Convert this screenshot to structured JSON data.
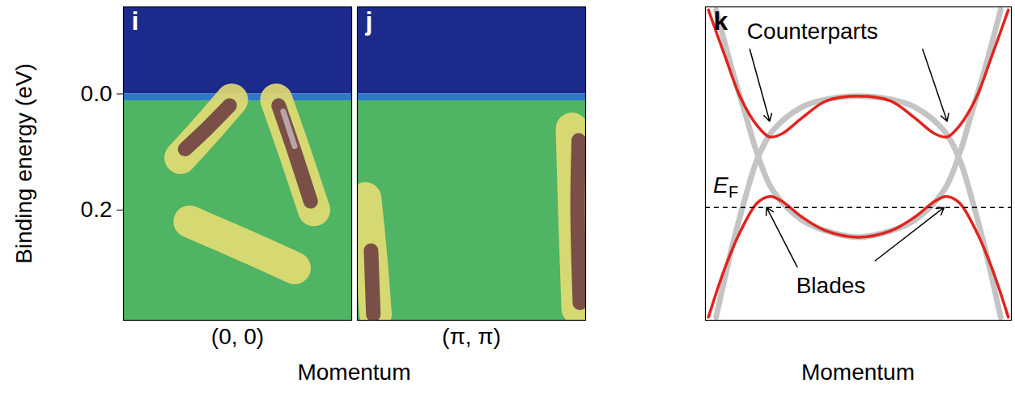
{
  "chart_data": [
    {
      "type": "intensity_map",
      "panel_label": "i",
      "ylabel": "Binding energy (eV)",
      "xlabel": "Momentum",
      "xlim": [
        -1,
        1
      ],
      "xticks": [
        {
          "value": 0,
          "label": "(0, 0)"
        }
      ],
      "ylim": [
        -0.15,
        0.39
      ],
      "yticks": [
        {
          "value": 0,
          "label": "0.0"
        },
        {
          "value": 0.2,
          "label": "0.2"
        }
      ],
      "regions": [
        {
          "color": "#1c2a8c",
          "range": [
            -0.15,
            0.0
          ]
        },
        {
          "color": "#2e78c8",
          "range": [
            0.0,
            0.012
          ]
        },
        {
          "color": "#4fb463",
          "range": [
            0.012,
            0.39
          ]
        }
      ],
      "series": [
        {
          "type": "halo",
          "color": "#e4dc72",
          "x": [
            -0.42,
            0.05,
            0.5
          ],
          "values": [
            0.22,
            0.26,
            0.3
          ]
        },
        {
          "type": "halo",
          "color": "#e4dc72",
          "x": [
            -0.05,
            -0.27,
            -0.5
          ],
          "values": [
            0.01,
            0.06,
            0.11
          ]
        },
        {
          "type": "halo",
          "color": "#e4dc72",
          "x": [
            0.34,
            0.5,
            0.67
          ],
          "values": [
            0.01,
            0.1,
            0.2
          ]
        },
        {
          "type": "band",
          "color": "#7a4f47",
          "x": [
            -0.07,
            -0.27,
            -0.46
          ],
          "values": [
            0.02,
            0.06,
            0.095
          ]
        },
        {
          "type": "band",
          "color": "#7a4f47",
          "x": [
            0.36,
            0.5,
            0.64
          ],
          "values": [
            0.02,
            0.1,
            0.185
          ]
        },
        {
          "type": "core",
          "color": "#b9a4aa",
          "x": [
            0.4,
            0.5
          ],
          "values": [
            0.03,
            0.09
          ]
        }
      ]
    },
    {
      "type": "intensity_map",
      "panel_label": "j",
      "tick_labels": "x",
      "xlim": [
        -1,
        1
      ],
      "xticks": [
        {
          "value": 0,
          "label": "(π, π)"
        }
      ],
      "ylim": [
        -0.15,
        0.39
      ],
      "regions": [
        {
          "color": "#1c2a8c",
          "range": [
            -0.15,
            0.0
          ]
        },
        {
          "color": "#2e78c8",
          "range": [
            0.0,
            0.012
          ]
        },
        {
          "color": "#4fb463",
          "range": [
            0.012,
            0.39
          ]
        }
      ],
      "series": [
        {
          "type": "halo",
          "color": "#e4dc72",
          "x": [
            0.88,
            0.9,
            0.93
          ],
          "values": [
            0.06,
            0.2,
            0.37
          ]
        },
        {
          "type": "halo",
          "color": "#e4dc72",
          "x": [
            -0.93,
            -0.88,
            -0.84
          ],
          "values": [
            0.18,
            0.28,
            0.38
          ]
        },
        {
          "type": "band",
          "color": "#7a4f47",
          "x": [
            0.94,
            0.93,
            0.95
          ],
          "values": [
            0.08,
            0.2,
            0.36
          ]
        },
        {
          "type": "band",
          "color": "#7a4f47",
          "x": [
            -0.88,
            -0.86
          ],
          "values": [
            0.27,
            0.38
          ]
        }
      ]
    },
    {
      "type": "line",
      "panel_label": "k",
      "xlabel": "Momentum",
      "tick_labels": false,
      "xlim": [
        -1,
        1
      ],
      "ylim": [
        -1,
        1
      ],
      "series": [
        {
          "color": "#c4c4c4",
          "line_style": "thick",
          "x": [
            -0.93,
            -0.82,
            -0.74,
            -0.66,
            -0.56,
            -0.37,
            -0.21,
            0,
            0.21,
            0.37,
            0.56,
            0.66,
            0.74,
            0.82,
            0.93
          ],
          "values": [
            -0.98,
            -0.51,
            -0.22,
            0.03,
            0.21,
            0.36,
            0.41,
            0.43,
            0.41,
            0.36,
            0.21,
            0.03,
            -0.22,
            -0.51,
            -0.98
          ]
        },
        {
          "color": "#c4c4c4",
          "line_style": "thick",
          "x": [
            -0.93,
            -0.82,
            -0.74,
            -0.66,
            -0.56,
            -0.37,
            -0.21,
            0,
            0.21,
            0.37,
            0.56,
            0.66,
            0.74,
            0.82,
            0.93
          ],
          "values": [
            0.98,
            0.58,
            0.32,
            0.06,
            -0.17,
            -0.36,
            -0.43,
            -0.47,
            -0.43,
            -0.36,
            -0.17,
            0.06,
            0.32,
            0.58,
            0.98
          ]
        },
        {
          "color": "#e0241d",
          "line_style": "solid",
          "x": [
            -0.98,
            -0.87,
            -0.77,
            -0.66,
            -0.58,
            -0.5,
            -0.37,
            -0.21,
            0,
            0.21,
            0.37,
            0.5,
            0.58,
            0.66,
            0.77,
            0.87,
            0.98
          ],
          "values": [
            0.98,
            0.68,
            0.42,
            0.24,
            0.17,
            0.19,
            0.29,
            0.4,
            0.43,
            0.4,
            0.29,
            0.19,
            0.17,
            0.24,
            0.42,
            0.68,
            0.98
          ]
        },
        {
          "color": "#e0241d",
          "line_style": "solid",
          "x": [
            -0.98,
            -0.87,
            -0.77,
            -0.66,
            -0.58,
            -0.5,
            -0.37,
            -0.21,
            0,
            0.21,
            0.37,
            0.5,
            0.58,
            0.66,
            0.77,
            0.87,
            0.98
          ],
          "values": [
            -0.98,
            -0.66,
            -0.43,
            -0.25,
            -0.21,
            -0.24,
            -0.34,
            -0.43,
            -0.47,
            -0.43,
            -0.34,
            -0.24,
            -0.21,
            -0.25,
            -0.43,
            -0.66,
            -0.98
          ]
        }
      ],
      "reference_line": {
        "value": -0.28,
        "line_style": "dashed",
        "label": {
          "text": "E",
          "subscript": "F"
        },
        "label_at": [
          -0.95,
          -0.14
        ]
      },
      "annotations": [
        {
          "text": "Counterparts",
          "at": [
            -0.3,
            0.84
          ],
          "arrows": [
            {
              "from": [
                -0.71,
                0.73
              ],
              "to": [
                -0.58,
                0.27
              ]
            },
            {
              "from": [
                0.42,
                0.73
              ],
              "to": [
                0.58,
                0.27
              ]
            }
          ]
        },
        {
          "text": "Blades",
          "at": [
            -0.18,
            -0.78
          ],
          "arrows": [
            {
              "from": [
                -0.4,
                -0.66
              ],
              "to": [
                -0.6,
                -0.28
              ]
            },
            {
              "from": [
                0.11,
                -0.62
              ],
              "to": [
                0.56,
                -0.28
              ]
            }
          ]
        }
      ]
    }
  ]
}
